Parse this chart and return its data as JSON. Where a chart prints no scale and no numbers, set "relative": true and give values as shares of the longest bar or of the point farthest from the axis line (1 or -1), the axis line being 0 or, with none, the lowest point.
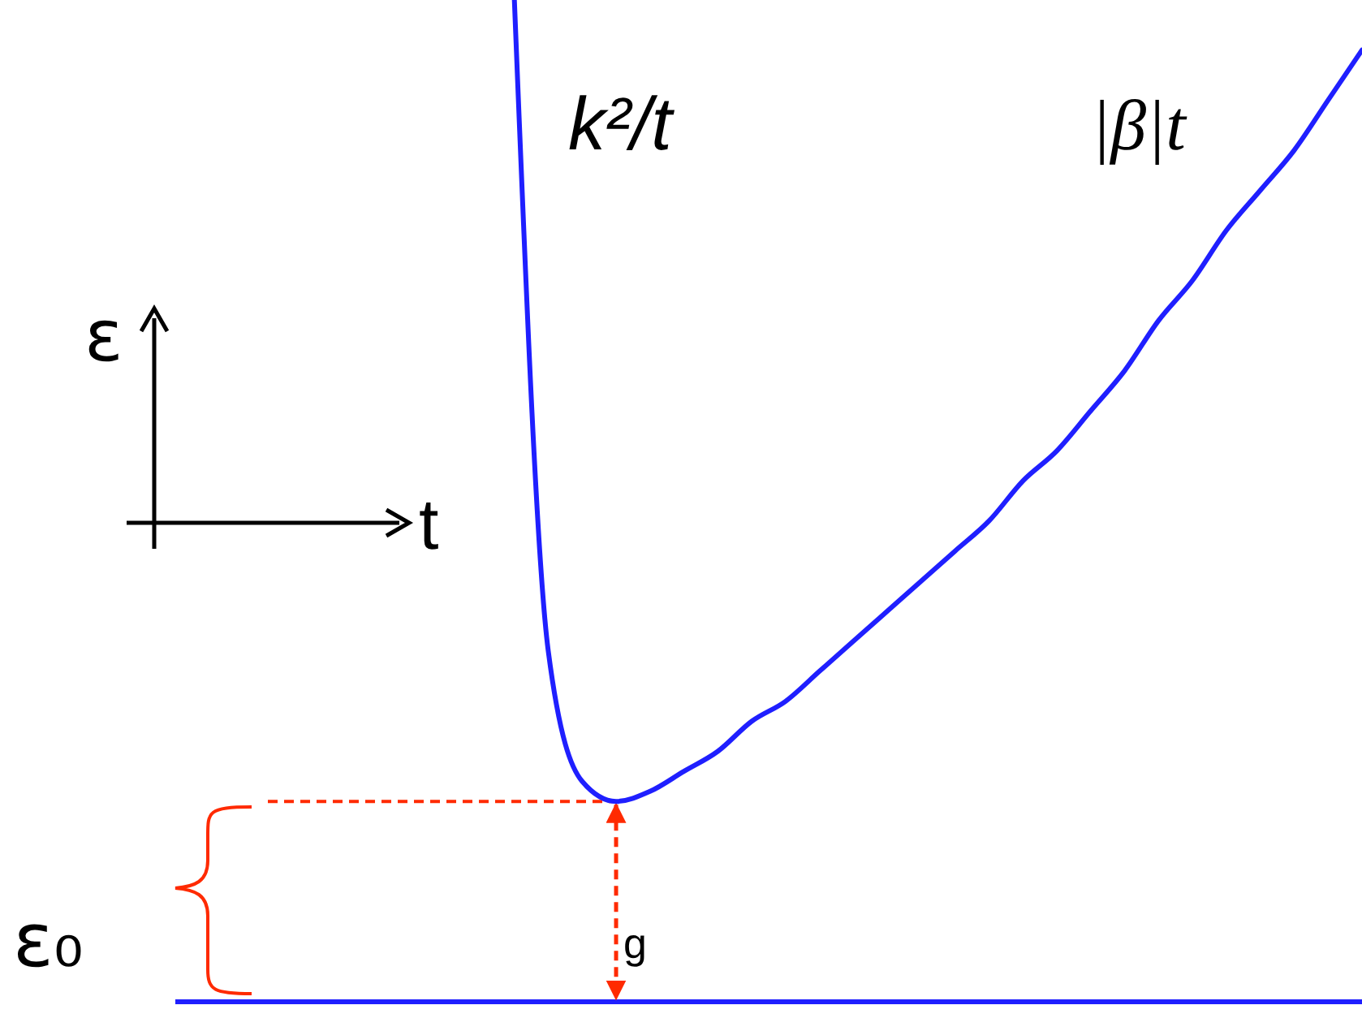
{
  "chart_data": {
    "type": "line",
    "relative": true,
    "xlabel": "t",
    "ylabel": "ε",
    "categories": [
      null,
      null,
      null,
      null,
      null,
      null,
      null,
      null,
      null,
      null,
      null,
      null,
      null,
      null,
      null,
      null,
      null,
      null,
      null,
      null,
      null,
      null,
      null,
      null,
      null,
      null,
      null,
      null,
      null,
      null,
      null,
      null,
      null,
      null,
      null,
      null
    ],
    "series": [
      {
        "color": "#1f1fff",
        "values": [
          null,
          null,
          null,
          null,
          null,
          null,
          null,
          null,
          null,
          null,
          1.0,
          0.35,
          0.22,
          0.2,
          0.21,
          0.23,
          0.25,
          0.28,
          0.3,
          0.33,
          0.36,
          0.39,
          0.42,
          0.45,
          0.48,
          0.52,
          0.55,
          0.59,
          0.63,
          0.68,
          0.72,
          0.77,
          0.81,
          0.85,
          0.9,
          0.95
        ]
      }
    ],
    "ref_lines": [
      {
        "axis": "y",
        "value": 0.2,
        "color": "#ff2a00",
        "line_style": "dashed"
      }
    ],
    "annotations": [
      "k²/t",
      "|β|t",
      "g",
      "ε₀"
    ]
  }
}
